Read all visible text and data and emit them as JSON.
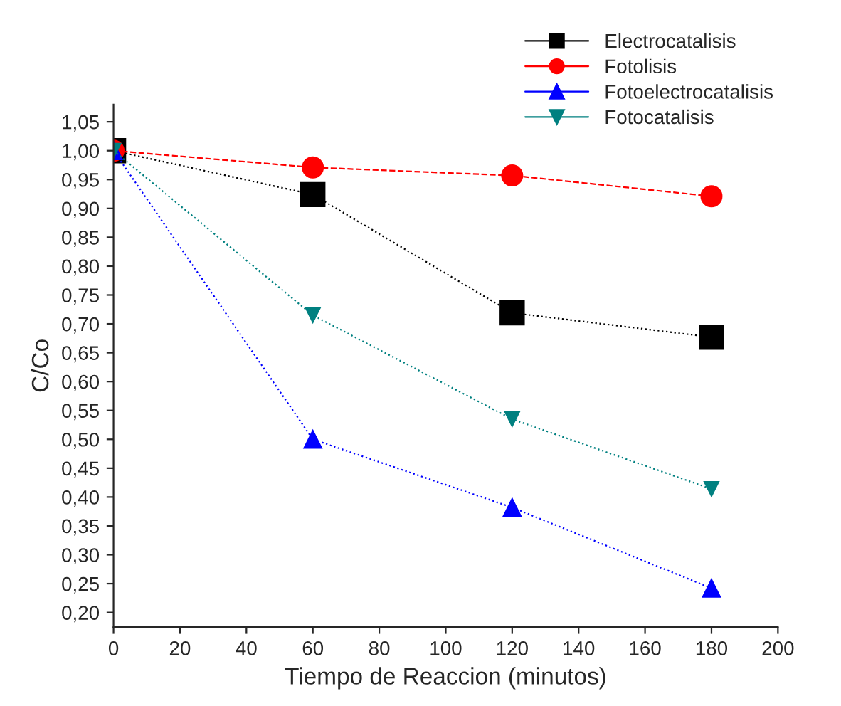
{
  "chart_data": {
    "type": "line",
    "xlabel": "Tiempo de Reaccion (minutos)",
    "ylabel": "C/Co",
    "x": [
      0,
      60,
      120,
      180
    ],
    "series": [
      {
        "name": "Electrocatalisis",
        "color": "#000000",
        "marker": "square",
        "line_style": "dotted",
        "values": [
          1.0,
          0.924,
          0.719,
          0.677
        ]
      },
      {
        "name": "Fotolisis",
        "color": "#ff0000",
        "marker": "circle",
        "line_style": "dashed",
        "values": [
          1.0,
          0.971,
          0.957,
          0.921
        ]
      },
      {
        "name": "Fotoelectrocatalisis",
        "color": "#0000ff",
        "marker": "triangle",
        "line_style": "dotted",
        "values": [
          1.0,
          0.5,
          0.382,
          0.242
        ]
      },
      {
        "name": "Fotocatalisis",
        "color": "#008080",
        "marker": "triangle_down",
        "line_style": "dotted",
        "values": [
          1.0,
          0.715,
          0.535,
          0.414
        ]
      }
    ],
    "xlim": [
      0,
      200
    ],
    "xticks": [
      0,
      20,
      40,
      60,
      80,
      100,
      120,
      140,
      160,
      180,
      200
    ],
    "ylim": [
      0.175,
      1.08
    ],
    "yticks": [
      {
        "value": 0.2,
        "label": "0,20"
      },
      {
        "value": 0.25,
        "label": "0,25"
      },
      {
        "value": 0.3,
        "label": "0,30"
      },
      {
        "value": 0.35,
        "label": "0,35"
      },
      {
        "value": 0.4,
        "label": "0,40"
      },
      {
        "value": 0.45,
        "label": "0,45"
      },
      {
        "value": 0.5,
        "label": "0,50"
      },
      {
        "value": 0.55,
        "label": "0,55"
      },
      {
        "value": 0.6,
        "label": "0,60"
      },
      {
        "value": 0.65,
        "label": "0,65"
      },
      {
        "value": 0.7,
        "label": "0,70"
      },
      {
        "value": 0.75,
        "label": "0,75"
      },
      {
        "value": 0.8,
        "label": "0,80"
      },
      {
        "value": 0.85,
        "label": "0,85"
      },
      {
        "value": 0.9,
        "label": "0,90"
      },
      {
        "value": 0.95,
        "label": "0,95"
      },
      {
        "value": 1.0,
        "label": "1,00"
      },
      {
        "value": 1.05,
        "label": "1,05"
      }
    ],
    "grid": false,
    "legend": "top right"
  }
}
